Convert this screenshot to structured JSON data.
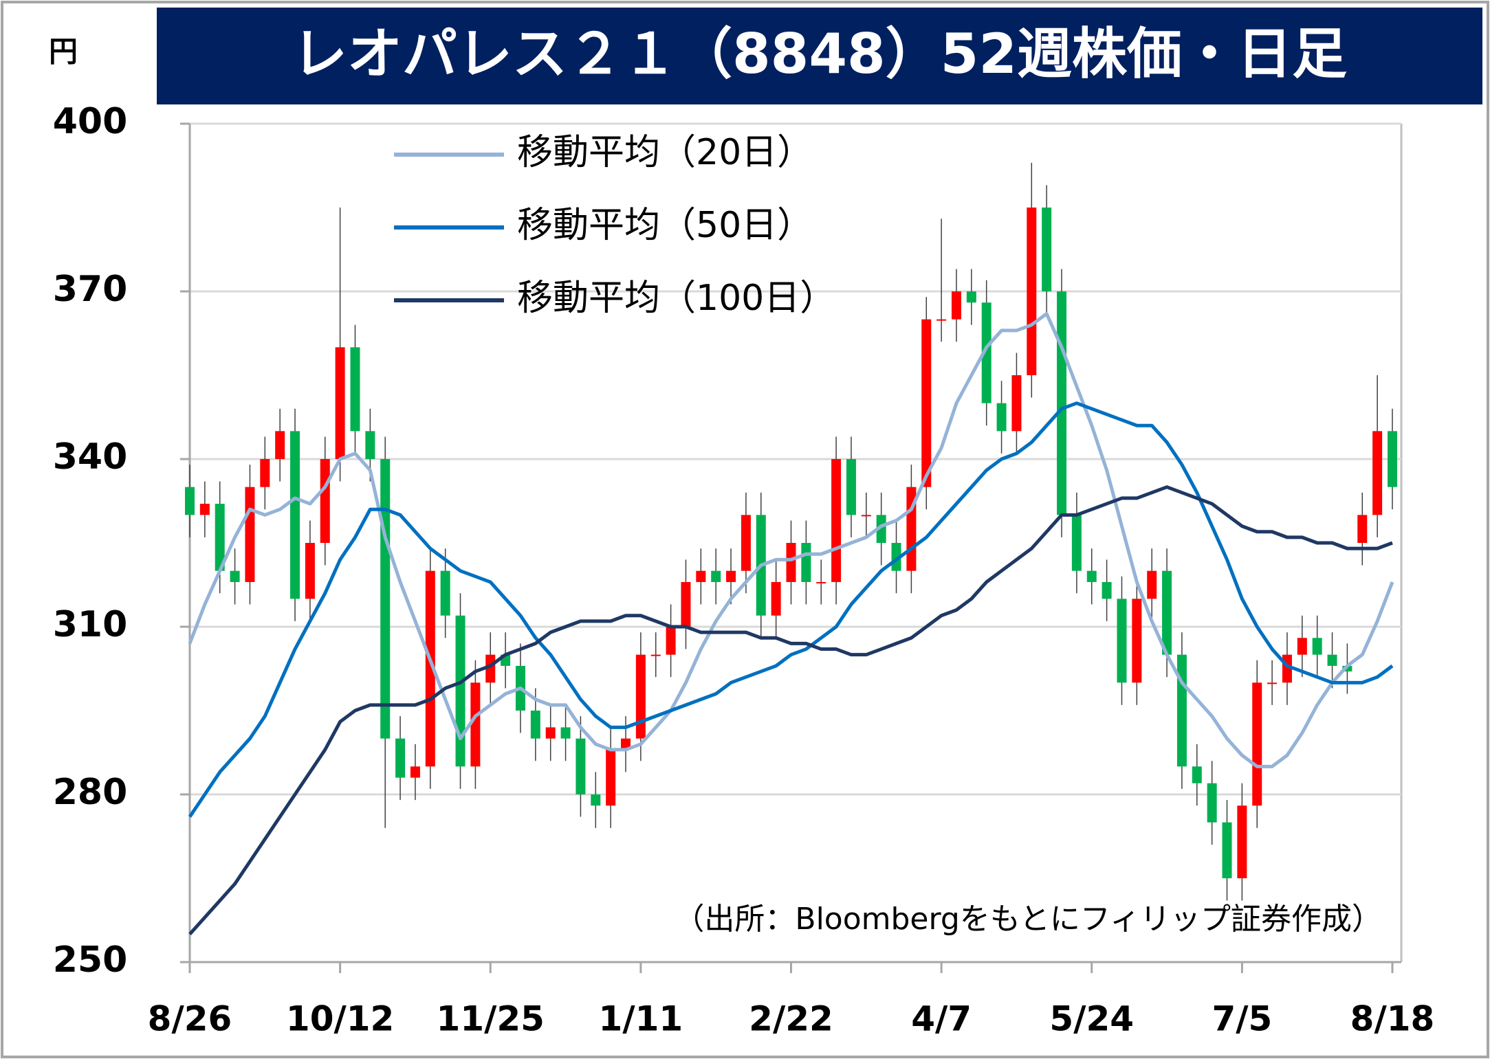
{
  "chart_data": {
    "type": "candlestick",
    "title": "レオパレス２１（8848）52週株価・日足",
    "y_unit": "円",
    "note": "（出所：Bloombergをもとにフィリップ証券作成）",
    "categories": [
      "8/26",
      null,
      null,
      null,
      null,
      null,
      null,
      null,
      null,
      null,
      "10/12",
      null,
      null,
      null,
      null,
      null,
      null,
      null,
      null,
      null,
      "11/25",
      null,
      null,
      null,
      null,
      null,
      null,
      null,
      null,
      null,
      "1/11",
      null,
      null,
      null,
      null,
      null,
      null,
      null,
      null,
      null,
      "2/22",
      null,
      null,
      null,
      null,
      null,
      null,
      null,
      null,
      null,
      "4/7",
      null,
      null,
      null,
      null,
      null,
      null,
      null,
      null,
      null,
      "5/24",
      null,
      null,
      null,
      null,
      null,
      null,
      null,
      null,
      null,
      "7/5",
      null,
      null,
      null,
      null,
      null,
      null,
      null,
      null,
      null,
      "8/18"
    ],
    "open": [
      335,
      330,
      332,
      320,
      318,
      335,
      340,
      345,
      315,
      325,
      340,
      360,
      345,
      340,
      290,
      283,
      285,
      320,
      312,
      285,
      300,
      305,
      303,
      295,
      290,
      292,
      290,
      280,
      278,
      288,
      290,
      305,
      305,
      310,
      318,
      320,
      318,
      320,
      330,
      312,
      318,
      325,
      318,
      318,
      340,
      330,
      330,
      325,
      320,
      335,
      365,
      365,
      370,
      368,
      350,
      345,
      355,
      385,
      370,
      330,
      320,
      318,
      315,
      300,
      315,
      320,
      305,
      285,
      282,
      275,
      265,
      278,
      300,
      300,
      305,
      308,
      305,
      303,
      325,
      330,
      345
    ],
    "high": [
      339,
      336,
      336,
      324,
      339,
      344,
      349,
      349,
      329,
      344,
      385,
      364,
      349,
      344,
      294,
      289,
      324,
      324,
      316,
      304,
      309,
      309,
      307,
      299,
      296,
      296,
      294,
      284,
      292,
      294,
      309,
      309,
      314,
      322,
      324,
      324,
      324,
      334,
      334,
      322,
      329,
      329,
      322,
      344,
      344,
      334,
      334,
      329,
      339,
      369,
      383,
      374,
      374,
      372,
      354,
      359,
      393,
      389,
      374,
      334,
      324,
      322,
      319,
      319,
      324,
      324,
      309,
      289,
      286,
      279,
      282,
      304,
      304,
      309,
      312,
      312,
      309,
      307,
      334,
      355,
      349
    ],
    "low": [
      326,
      326,
      316,
      314,
      314,
      331,
      336,
      311,
      311,
      321,
      336,
      341,
      336,
      274,
      279,
      279,
      281,
      308,
      281,
      281,
      296,
      299,
      291,
      286,
      286,
      286,
      276,
      274,
      274,
      284,
      286,
      301,
      301,
      306,
      314,
      314,
      314,
      316,
      308,
      308,
      314,
      314,
      314,
      314,
      326,
      326,
      321,
      316,
      316,
      331,
      361,
      361,
      364,
      346,
      341,
      341,
      351,
      366,
      326,
      316,
      314,
      311,
      296,
      296,
      311,
      301,
      281,
      278,
      271,
      261,
      261,
      274,
      296,
      296,
      301,
      301,
      299,
      298,
      321,
      326,
      331
    ],
    "close": [
      330,
      332,
      320,
      318,
      335,
      340,
      345,
      315,
      325,
      340,
      360,
      345,
      340,
      290,
      283,
      285,
      320,
      312,
      285,
      300,
      305,
      303,
      295,
      290,
      292,
      290,
      280,
      278,
      288,
      290,
      305,
      305,
      310,
      318,
      320,
      318,
      320,
      330,
      312,
      318,
      325,
      318,
      318,
      340,
      330,
      330,
      325,
      320,
      335,
      365,
      365,
      370,
      368,
      350,
      345,
      355,
      385,
      370,
      330,
      320,
      318,
      315,
      300,
      315,
      320,
      305,
      285,
      282,
      275,
      265,
      278,
      300,
      300,
      305,
      308,
      305,
      303,
      302,
      330,
      345,
      335
    ],
    "up_color": "#ff0000",
    "down_color": "#00b050",
    "series": [
      {
        "name": "移動平均（20日）",
        "color": "#95b3d7",
        "values": [
          307,
          314,
          320,
          326,
          331,
          330,
          331,
          333,
          332,
          335,
          340,
          341,
          338,
          326,
          318,
          311,
          304,
          297,
          290,
          294,
          296,
          298,
          299,
          297,
          296,
          296,
          292,
          289,
          288,
          288,
          289,
          292,
          295,
          300,
          306,
          311,
          315,
          318,
          321,
          322,
          322,
          323,
          323,
          324,
          325,
          326,
          328,
          329,
          331,
          337,
          342,
          350,
          355,
          360,
          363,
          363,
          364,
          366,
          360,
          353,
          346,
          338,
          328,
          318,
          311,
          305,
          300,
          297,
          294,
          290,
          287,
          285,
          285,
          287,
          291,
          296,
          300,
          303,
          305,
          311,
          318
        ]
      },
      {
        "name": "移動平均（50日）",
        "color": "#0070c0",
        "values": [
          276,
          280,
          284,
          287,
          290,
          294,
          300,
          306,
          311,
          316,
          322,
          326,
          331,
          331,
          330,
          327,
          324,
          322,
          320,
          319,
          318,
          315,
          312,
          308,
          305,
          301,
          297,
          294,
          292,
          292,
          293,
          294,
          295,
          296,
          297,
          298,
          300,
          301,
          302,
          303,
          305,
          306,
          308,
          310,
          314,
          317,
          320,
          322,
          324,
          326,
          329,
          332,
          335,
          338,
          340,
          341,
          343,
          346,
          349,
          350,
          349,
          348,
          347,
          346,
          346,
          343,
          339,
          334,
          328,
          322,
          315,
          310,
          306,
          303,
          302,
          301,
          300,
          300,
          300,
          301,
          303
        ]
      },
      {
        "name": "移動平均（100日）",
        "color": "#1f3864",
        "values": [
          255,
          258,
          261,
          264,
          268,
          272,
          276,
          280,
          284,
          288,
          293,
          295,
          296,
          296,
          296,
          296,
          297,
          299,
          300,
          302,
          303,
          305,
          306,
          307,
          309,
          310,
          311,
          311,
          311,
          312,
          312,
          311,
          310,
          310,
          309,
          309,
          309,
          309,
          308,
          308,
          307,
          307,
          306,
          306,
          305,
          305,
          306,
          307,
          308,
          310,
          312,
          313,
          315,
          318,
          320,
          322,
          324,
          327,
          330,
          330,
          331,
          332,
          333,
          333,
          334,
          335,
          334,
          333,
          332,
          330,
          328,
          327,
          327,
          326,
          326,
          325,
          325,
          324,
          324,
          324,
          325
        ]
      }
    ],
    "ylim": [
      250,
      400
    ],
    "yticks": [
      250,
      280,
      310,
      340,
      370,
      400
    ],
    "grid": true,
    "legend": "top-left"
  }
}
